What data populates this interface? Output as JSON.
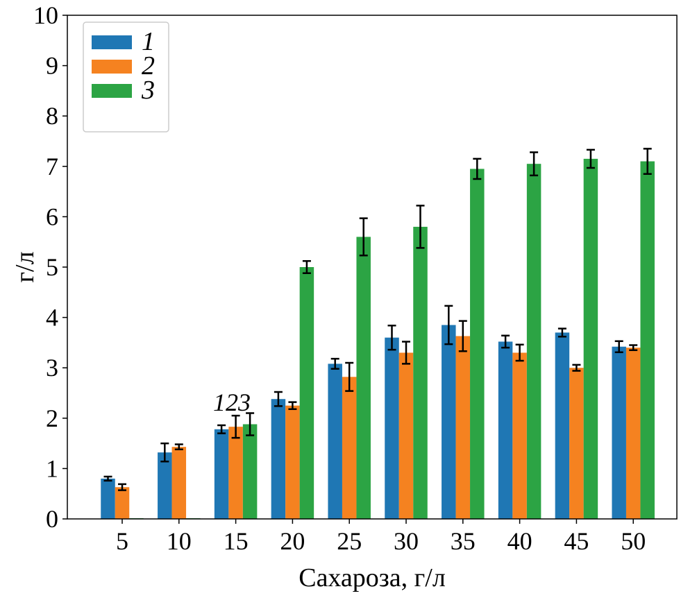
{
  "chart_data": {
    "type": "bar",
    "title": "",
    "xlabel": "Сахароза, г/л",
    "ylabel": "г/л",
    "ylim": [
      0,
      10
    ],
    "yticks": [
      "0",
      "1",
      "2",
      "3",
      "4",
      "5",
      "6",
      "7",
      "8",
      "9",
      "10"
    ],
    "categories": [
      "5",
      "10",
      "15",
      "20",
      "25",
      "30",
      "35",
      "40",
      "45",
      "50"
    ],
    "grid": false,
    "legend_position": "top-left",
    "annotation": "123",
    "series": [
      {
        "name": "1",
        "color": "#1f77b4",
        "values": [
          0.8,
          1.32,
          1.78,
          2.38,
          3.08,
          3.6,
          3.85,
          3.52,
          3.7,
          3.42
        ],
        "errors": [
          0.04,
          0.18,
          0.08,
          0.14,
          0.1,
          0.24,
          0.38,
          0.12,
          0.08,
          0.11
        ]
      },
      {
        "name": "2",
        "color": "#f58220",
        "values": [
          0.63,
          1.43,
          1.83,
          2.25,
          2.82,
          3.3,
          3.63,
          3.3,
          3.0,
          3.4
        ],
        "errors": [
          0.06,
          0.05,
          0.22,
          0.07,
          0.28,
          0.22,
          0.3,
          0.16,
          0.06,
          0.05
        ]
      },
      {
        "name": "3",
        "color": "#2ca444",
        "values": [
          0,
          0,
          1.88,
          5.0,
          5.6,
          5.8,
          6.95,
          7.05,
          7.15,
          7.1
        ],
        "errors": [
          0,
          0,
          0.22,
          0.12,
          0.37,
          0.42,
          0.2,
          0.23,
          0.18,
          0.25
        ]
      }
    ]
  }
}
